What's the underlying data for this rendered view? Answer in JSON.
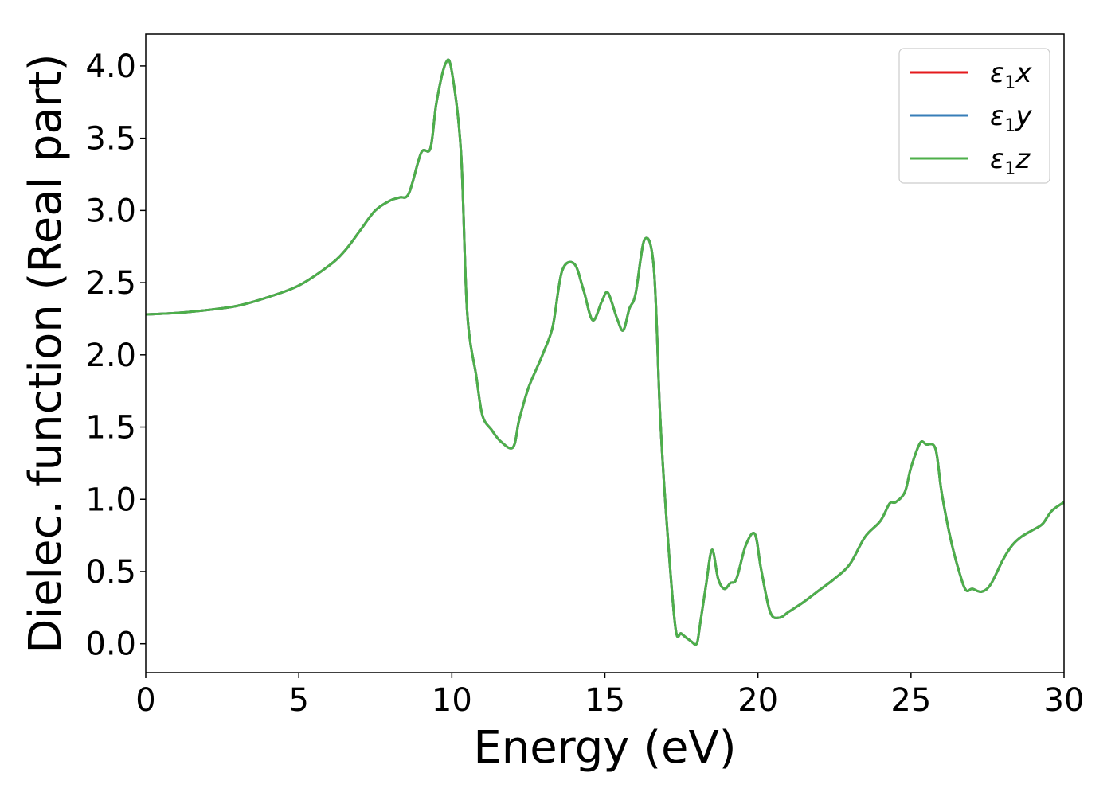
{
  "chart_data": {
    "type": "line",
    "xlabel": "Energy (eV)",
    "ylabel": "Dielec. function (Real part)",
    "xlim": [
      0,
      30
    ],
    "ylim": [
      -0.2,
      4.22
    ],
    "xticks": [
      0,
      5,
      10,
      15,
      20,
      25,
      30
    ],
    "yticks": [
      0.0,
      0.5,
      1.0,
      1.5,
      2.0,
      2.5,
      3.0,
      3.5,
      4.0
    ],
    "xtick_labels": [
      "0",
      "5",
      "10",
      "15",
      "20",
      "25",
      "30"
    ],
    "ytick_labels": [
      "0.0",
      "0.5",
      "1.0",
      "1.5",
      "2.0",
      "2.5",
      "3.0",
      "3.5",
      "4.0"
    ],
    "grid": false,
    "legend_position": "top-right",
    "x": [
      0,
      1,
      2,
      3,
      4,
      5,
      6,
      6.5,
      7,
      7.5,
      8,
      8.3,
      8.6,
      9,
      9.3,
      9.5,
      9.8,
      10,
      10.3,
      10.5,
      10.8,
      11,
      11.3,
      11.6,
      12,
      12.2,
      12.5,
      12.8,
      13,
      13.3,
      13.6,
      14,
      14.3,
      14.6,
      14.9,
      15.1,
      15.4,
      15.6,
      15.8,
      16,
      16.3,
      16.6,
      16.8,
      17,
      17.3,
      17.5,
      17.8,
      18,
      18.1,
      18.3,
      18.5,
      18.7,
      18.9,
      19.1,
      19.3,
      19.6,
      19.9,
      20.1,
      20.4,
      20.7,
      21,
      21.5,
      22,
      22.5,
      23,
      23.5,
      24,
      24.3,
      24.5,
      24.8,
      25,
      25.3,
      25.5,
      25.8,
      26,
      26.3,
      26.6,
      26.8,
      27,
      27.3,
      27.6,
      28,
      28.3,
      28.6,
      29,
      29.3,
      29.6,
      30
    ],
    "series": [
      {
        "name": "ε₁x",
        "color": "#e41a1c",
        "values": [
          2.28,
          2.29,
          2.31,
          2.34,
          2.4,
          2.48,
          2.62,
          2.72,
          2.86,
          3.0,
          3.07,
          3.09,
          3.12,
          3.4,
          3.43,
          3.75,
          4.02,
          3.96,
          3.4,
          2.3,
          1.85,
          1.58,
          1.48,
          1.4,
          1.36,
          1.55,
          1.77,
          1.92,
          2.02,
          2.2,
          2.58,
          2.63,
          2.45,
          2.24,
          2.37,
          2.43,
          2.25,
          2.17,
          2.32,
          2.42,
          2.8,
          2.6,
          1.6,
          0.9,
          0.12,
          0.07,
          0.02,
          0.0,
          0.12,
          0.4,
          0.65,
          0.45,
          0.38,
          0.42,
          0.45,
          0.68,
          0.76,
          0.52,
          0.22,
          0.18,
          0.22,
          0.29,
          0.37,
          0.45,
          0.55,
          0.74,
          0.85,
          0.97,
          0.98,
          1.05,
          1.22,
          1.39,
          1.38,
          1.35,
          1.05,
          0.72,
          0.48,
          0.37,
          0.38,
          0.36,
          0.41,
          0.58,
          0.68,
          0.74,
          0.79,
          0.83,
          0.92,
          0.98
        ]
      },
      {
        "name": "ε₁y",
        "color": "#377eb8",
        "values": [
          2.28,
          2.29,
          2.31,
          2.34,
          2.4,
          2.48,
          2.62,
          2.72,
          2.86,
          3.0,
          3.07,
          3.09,
          3.12,
          3.4,
          3.43,
          3.75,
          4.02,
          3.96,
          3.4,
          2.3,
          1.85,
          1.58,
          1.48,
          1.4,
          1.36,
          1.55,
          1.77,
          1.92,
          2.02,
          2.2,
          2.58,
          2.63,
          2.45,
          2.24,
          2.37,
          2.43,
          2.25,
          2.17,
          2.32,
          2.42,
          2.8,
          2.6,
          1.6,
          0.9,
          0.12,
          0.07,
          0.02,
          0.0,
          0.12,
          0.4,
          0.65,
          0.45,
          0.38,
          0.42,
          0.45,
          0.68,
          0.76,
          0.52,
          0.22,
          0.18,
          0.22,
          0.29,
          0.37,
          0.45,
          0.55,
          0.74,
          0.85,
          0.97,
          0.98,
          1.05,
          1.22,
          1.39,
          1.38,
          1.35,
          1.05,
          0.72,
          0.48,
          0.37,
          0.38,
          0.36,
          0.41,
          0.58,
          0.68,
          0.74,
          0.79,
          0.83,
          0.92,
          0.98
        ]
      },
      {
        "name": "ε₁z",
        "color": "#4daf4a",
        "values": [
          2.28,
          2.29,
          2.31,
          2.34,
          2.4,
          2.48,
          2.62,
          2.72,
          2.86,
          3.0,
          3.07,
          3.09,
          3.12,
          3.4,
          3.43,
          3.75,
          4.02,
          3.96,
          3.4,
          2.3,
          1.85,
          1.58,
          1.48,
          1.4,
          1.36,
          1.55,
          1.77,
          1.92,
          2.02,
          2.2,
          2.58,
          2.63,
          2.45,
          2.24,
          2.37,
          2.43,
          2.25,
          2.17,
          2.32,
          2.42,
          2.8,
          2.6,
          1.6,
          0.9,
          0.12,
          0.07,
          0.02,
          0.0,
          0.12,
          0.4,
          0.65,
          0.45,
          0.38,
          0.42,
          0.45,
          0.68,
          0.76,
          0.52,
          0.22,
          0.18,
          0.22,
          0.29,
          0.37,
          0.45,
          0.55,
          0.74,
          0.85,
          0.97,
          0.98,
          1.05,
          1.22,
          1.39,
          1.38,
          1.35,
          1.05,
          0.72,
          0.48,
          0.37,
          0.38,
          0.36,
          0.41,
          0.58,
          0.68,
          0.74,
          0.79,
          0.83,
          0.92,
          0.98
        ]
      }
    ]
  }
}
